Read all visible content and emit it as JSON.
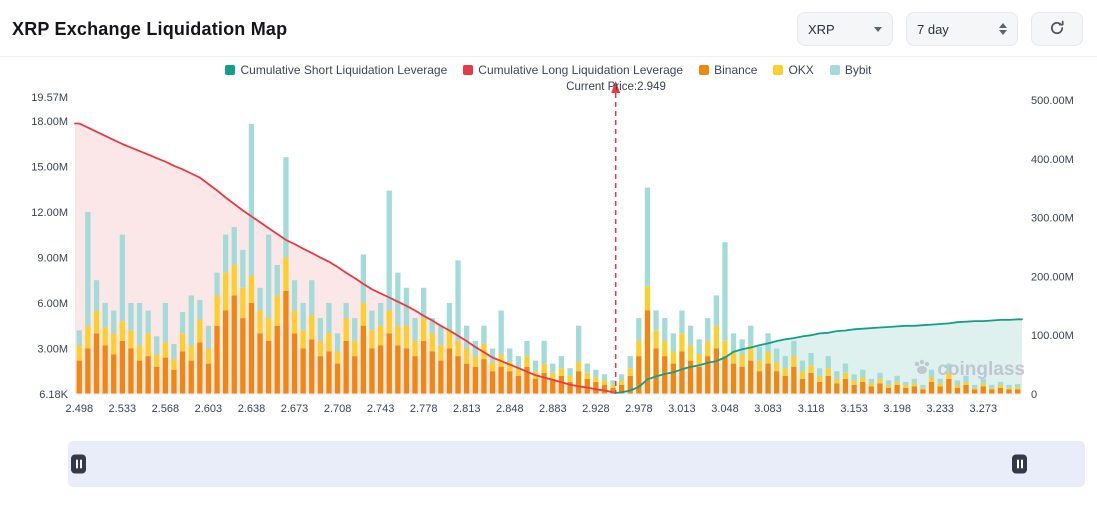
{
  "header": {
    "title": "XRP Exchange Liquidation Map",
    "coin_selector": {
      "value": "XRP",
      "icon": "chevron-down"
    },
    "period_selector": {
      "value": "7 day",
      "icon": "up-down-stepper"
    },
    "refresh_icon": "refresh"
  },
  "legend": {
    "items": [
      {
        "label": "Cumulative Short Liquidation Leverage",
        "color": "#129e87"
      },
      {
        "label": "Cumulative Long Liquidation Leverage",
        "color": "#ea3943"
      },
      {
        "label": "Binance",
        "color": "#f1870e"
      },
      {
        "label": "OKX",
        "color": "#fccf2c"
      },
      {
        "label": "Bybit",
        "color": "#a2dbd8"
      }
    ]
  },
  "current_price": {
    "label": "Current Price:2.949",
    "value": 2.949
  },
  "watermark": "coinglass",
  "navigator": {
    "left_handle_icon": "pause-handle",
    "right_handle_icon": "pause-handle"
  },
  "chart_data": {
    "type": "bar",
    "title": "XRP Exchange Liquidation Map",
    "units": "M",
    "x_tick_labels": [
      "2.498",
      "2.533",
      "2.568",
      "2.603",
      "2.638",
      "2.673",
      "2.708",
      "2.743",
      "2.778",
      "2.813",
      "2.848",
      "2.883",
      "2.928",
      "2.978",
      "3.013",
      "3.048",
      "3.083",
      "3.118",
      "3.153",
      "3.198",
      "3.233",
      "3.273"
    ],
    "x_tick_every": 5,
    "left_axis": {
      "max": 19.57,
      "ticks": [
        {
          "label": "19.57M",
          "value": 19.57
        },
        {
          "label": "18.00M",
          "value": 18
        },
        {
          "label": "15.00M",
          "value": 15
        },
        {
          "label": "12.00M",
          "value": 12
        },
        {
          "label": "9.00M",
          "value": 9
        },
        {
          "label": "6.00M",
          "value": 6
        },
        {
          "label": "3.00M",
          "value": 3
        },
        {
          "label": "6.18K",
          "value": 0
        }
      ]
    },
    "right_axis": {
      "max": 505,
      "ticks": [
        {
          "label": "500.00M",
          "value": 500
        },
        {
          "label": "400.00M",
          "value": 400
        },
        {
          "label": "300.00M",
          "value": 300
        },
        {
          "label": "200.00M",
          "value": 200
        },
        {
          "label": "100.00M",
          "value": 100
        },
        {
          "label": "0",
          "value": 0
        }
      ]
    },
    "series": [
      {
        "name": "Binance",
        "color": "#f1870e",
        "values": [
          2.2,
          3.0,
          4.0,
          3.2,
          2.6,
          3.5,
          3.0,
          2.2,
          2.5,
          1.8,
          2.4,
          1.6,
          2.8,
          2.2,
          3.4,
          2.0,
          4.5,
          5.5,
          6.5,
          5.0,
          6.0,
          4.0,
          3.5,
          4.5,
          6.8,
          4.0,
          3.0,
          3.6,
          2.5,
          2.8,
          2.0,
          3.5,
          2.5,
          4.5,
          3.0,
          3.2,
          4.0,
          3.2,
          3.0,
          2.5,
          3.5,
          2.8,
          2.2,
          3.0,
          2.5,
          2.0,
          1.8,
          2.3,
          1.5,
          1.8,
          1.5,
          1.2,
          1.8,
          1.0,
          1.4,
          1.0,
          1.2,
          0.8,
          1.5,
          1.0,
          0.8,
          0.6,
          0.4,
          0.6,
          1.2,
          2.5,
          5.5,
          3.0,
          2.5,
          2.0,
          2.8,
          2.2,
          1.8,
          2.5,
          3.0,
          2.5,
          2.0,
          1.8,
          2.2,
          1.5,
          2.0,
          1.5,
          1.2,
          1.8,
          1.0,
          1.4,
          0.8,
          1.2,
          0.7,
          1.0,
          0.6,
          0.8,
          0.5,
          0.7,
          0.4,
          0.6,
          0.4,
          0.5,
          0.3,
          0.8,
          0.5,
          1.0,
          0.4,
          0.6,
          0.3,
          0.5,
          0.3,
          0.4,
          0.3,
          0.3
        ]
      },
      {
        "name": "OKX",
        "color": "#fccf2c",
        "values": [
          1.0,
          1.5,
          1.5,
          1.2,
          1.4,
          1.3,
          1.2,
          1.0,
          1.5,
          0.8,
          1.0,
          0.7,
          1.2,
          1.0,
          1.5,
          1.0,
          2.0,
          2.5,
          2.0,
          2.0,
          1.8,
          1.5,
          1.5,
          2.0,
          2.2,
          1.5,
          1.2,
          1.6,
          1.0,
          1.2,
          0.8,
          1.5,
          1.0,
          1.5,
          1.2,
          1.3,
          1.5,
          1.3,
          1.5,
          1.0,
          1.5,
          1.2,
          1.0,
          1.2,
          1.0,
          1.0,
          0.7,
          1.0,
          0.6,
          0.8,
          0.6,
          0.5,
          0.7,
          0.5,
          0.6,
          0.4,
          0.5,
          0.4,
          0.6,
          0.4,
          0.3,
          0.3,
          0.2,
          0.3,
          0.5,
          1.0,
          1.6,
          1.2,
          1.0,
          0.8,
          1.2,
          1.0,
          0.8,
          1.0,
          1.5,
          1.0,
          0.8,
          0.8,
          1.0,
          0.7,
          0.8,
          0.6,
          0.5,
          0.7,
          0.5,
          0.5,
          0.4,
          0.5,
          0.3,
          0.4,
          0.3,
          0.3,
          0.2,
          0.3,
          0.2,
          0.2,
          0.2,
          0.2,
          0.1,
          0.3,
          0.2,
          0.4,
          0.2,
          0.2,
          0.1,
          0.2,
          0.1,
          0.2,
          0.1,
          0.15
        ]
      },
      {
        "name": "Bybit",
        "color": "#a2dbd8",
        "values": [
          1.0,
          7.5,
          2.0,
          1.6,
          1.5,
          5.7,
          1.8,
          2.8,
          1.5,
          1.2,
          2.6,
          1.0,
          1.4,
          3.3,
          1.3,
          1.5,
          1.5,
          2.5,
          2.5,
          2.5,
          10.0,
          1.5,
          5.5,
          2.0,
          6.6,
          2.0,
          1.8,
          2.3,
          1.5,
          2.0,
          1.2,
          1.0,
          1.5,
          3.2,
          1.3,
          1.5,
          7.9,
          3.5,
          2.5,
          1.5,
          2.0,
          1.0,
          1.3,
          1.8,
          5.3,
          1.5,
          1.0,
          1.2,
          0.9,
          2.9,
          0.9,
          0.8,
          1.0,
          0.7,
          1.5,
          0.6,
          0.8,
          0.5,
          2.4,
          0.6,
          0.5,
          0.4,
          0.3,
          0.4,
          0.8,
          1.5,
          6.5,
          1.3,
          1.5,
          1.2,
          1.5,
          1.3,
          1.0,
          1.5,
          2.0,
          6.5,
          1.2,
          1.0,
          1.3,
          0.9,
          1.2,
          0.9,
          0.8,
          1.0,
          0.7,
          0.8,
          0.5,
          0.8,
          0.5,
          0.6,
          0.4,
          0.5,
          0.3,
          0.4,
          0.3,
          0.4,
          0.2,
          0.3,
          0.2,
          0.5,
          0.3,
          0.6,
          0.3,
          0.4,
          0.2,
          0.3,
          0.2,
          0.2,
          0.2,
          0.2
        ]
      }
    ],
    "lines": [
      {
        "name": "Cumulative Long Liquidation Leverage",
        "color": "#ea3943",
        "fill": "rgba(234,57,67,0.12)",
        "start_index": 0,
        "values": [
          460,
          453,
          446,
          439,
          432,
          425,
          419,
          413,
          407,
          401,
          395,
          388,
          382,
          375,
          368,
          357,
          346,
          334,
          323,
          312,
          302,
          292,
          282,
          272,
          262,
          255,
          247,
          240,
          232,
          225,
          216,
          206,
          197,
          187,
          178,
          171,
          164,
          157,
          150,
          142,
          133,
          125,
          116,
          108,
          99,
          90,
          80,
          71,
          62,
          56,
          50,
          44,
          38,
          32,
          28,
          24,
          20,
          16,
          13,
          11,
          8,
          6,
          3
        ]
      },
      {
        "name": "Cumulative Short Liquidation Leverage",
        "color": "#129e87",
        "fill": "rgba(18,158,135,0.14)",
        "start_index": 62,
        "values": [
          1,
          3,
          6,
          12,
          25,
          30,
          34,
          37,
          42,
          46,
          49,
          53,
          56,
          62,
          72,
          76,
          79,
          83,
          86,
          90,
          93,
          95,
          98,
          100,
          103,
          104,
          107,
          108,
          110,
          111,
          112,
          113,
          114,
          115,
          116,
          116,
          117,
          118,
          119,
          120,
          122,
          123,
          124,
          124,
          125,
          126,
          126,
          127
        ]
      }
    ],
    "current_price_index": 62.3,
    "legend_position": "top",
    "grid": false
  }
}
